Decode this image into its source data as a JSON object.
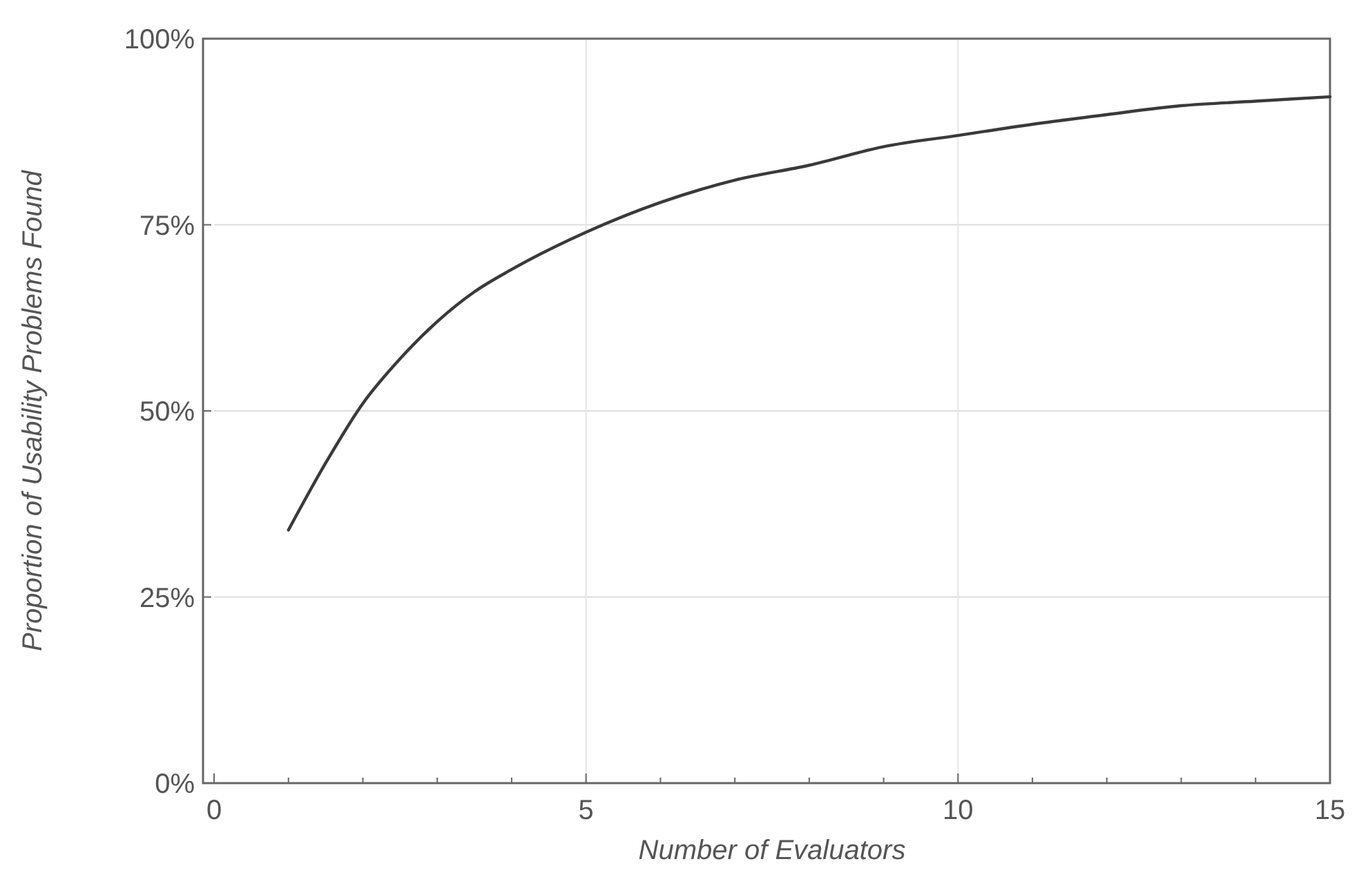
{
  "chart_data": {
    "type": "line",
    "xlabel": "Number of Evaluators",
    "ylabel": "Proportion of Usability Problems Found",
    "x": [
      1,
      1.5,
      2,
      2.5,
      3,
      3.5,
      4,
      5,
      6,
      7,
      8,
      9,
      10,
      11,
      12,
      13,
      14,
      15
    ],
    "series": [
      {
        "color": "#3a3a3a",
        "values": [
          34,
          43,
          51,
          57,
          62,
          66,
          69,
          74,
          78,
          81,
          83,
          85.5,
          87,
          88.5,
          89.8,
          91,
          91.6,
          92.2
        ]
      }
    ],
    "xlim": [
      0,
      15
    ],
    "xticks": [
      0,
      {
        "value": 1,
        "label": null
      },
      {
        "value": 2,
        "label": null
      },
      {
        "value": 3,
        "label": null
      },
      {
        "value": 4,
        "label": null
      },
      5,
      {
        "value": 6,
        "label": null
      },
      {
        "value": 7,
        "label": null
      },
      {
        "value": 8,
        "label": null
      },
      {
        "value": 9,
        "label": null
      },
      10,
      {
        "value": 11,
        "label": null
      },
      {
        "value": 12,
        "label": null
      },
      {
        "value": 13,
        "label": null
      },
      {
        "value": 14,
        "label": null
      },
      15
    ],
    "ylim": [
      0,
      100
    ],
    "yticks": [
      {
        "value": 0,
        "label": "0%"
      },
      {
        "value": 25,
        "label": "25%"
      },
      {
        "value": 50,
        "label": "50%"
      },
      {
        "value": 75,
        "label": "75%"
      },
      {
        "value": 100,
        "label": "100%"
      }
    ],
    "grid": true,
    "marker": "none",
    "line_style": "solid"
  }
}
